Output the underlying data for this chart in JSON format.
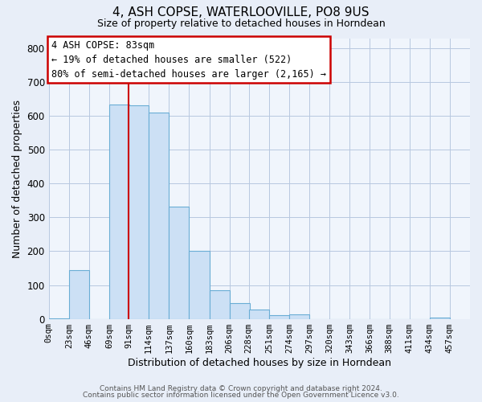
{
  "title": "4, ASH COPSE, WATERLOOVILLE, PO8 9US",
  "subtitle": "Size of property relative to detached houses in Horndean",
  "xlabel": "Distribution of detached houses by size in Horndean",
  "ylabel": "Number of detached properties",
  "bin_labels": [
    "0sqm",
    "23sqm",
    "46sqm",
    "69sqm",
    "91sqm",
    "114sqm",
    "137sqm",
    "160sqm",
    "183sqm",
    "206sqm",
    "228sqm",
    "251sqm",
    "274sqm",
    "297sqm",
    "320sqm",
    "343sqm",
    "366sqm",
    "388sqm",
    "411sqm",
    "434sqm",
    "457sqm"
  ],
  "bin_edges": [
    0,
    23,
    46,
    69,
    91,
    114,
    137,
    160,
    183,
    206,
    228,
    251,
    274,
    297,
    320,
    343,
    366,
    388,
    411,
    434,
    457
  ],
  "bar_heights": [
    2,
    143,
    0,
    635,
    632,
    610,
    333,
    200,
    84,
    47,
    27,
    12,
    13,
    0,
    0,
    0,
    0,
    0,
    0,
    3
  ],
  "bar_color": "#cce0f5",
  "bar_edge_color": "#6aadd5",
  "marker_x": 91,
  "marker_label_line1": "4 ASH COPSE: 83sqm",
  "marker_label_line2": "← 19% of detached houses are smaller (522)",
  "marker_label_line3": "80% of semi-detached houses are larger (2,165) →",
  "annotation_box_color": "#ffffff",
  "annotation_box_edge": "#cc0000",
  "marker_line_color": "#cc0000",
  "ylim": [
    0,
    830
  ],
  "yticks": [
    0,
    100,
    200,
    300,
    400,
    500,
    600,
    700,
    800
  ],
  "footer_line1": "Contains HM Land Registry data © Crown copyright and database right 2024.",
  "footer_line2": "Contains public sector information licensed under the Open Government Licence v3.0.",
  "bg_color": "#e8eef8",
  "plot_bg_color": "#f0f5fc",
  "xlim": [
    0,
    480
  ],
  "title_fontsize": 11,
  "subtitle_fontsize": 9,
  "tick_fontsize": 7.5,
  "label_fontsize": 9,
  "annot_fontsize": 8.5
}
